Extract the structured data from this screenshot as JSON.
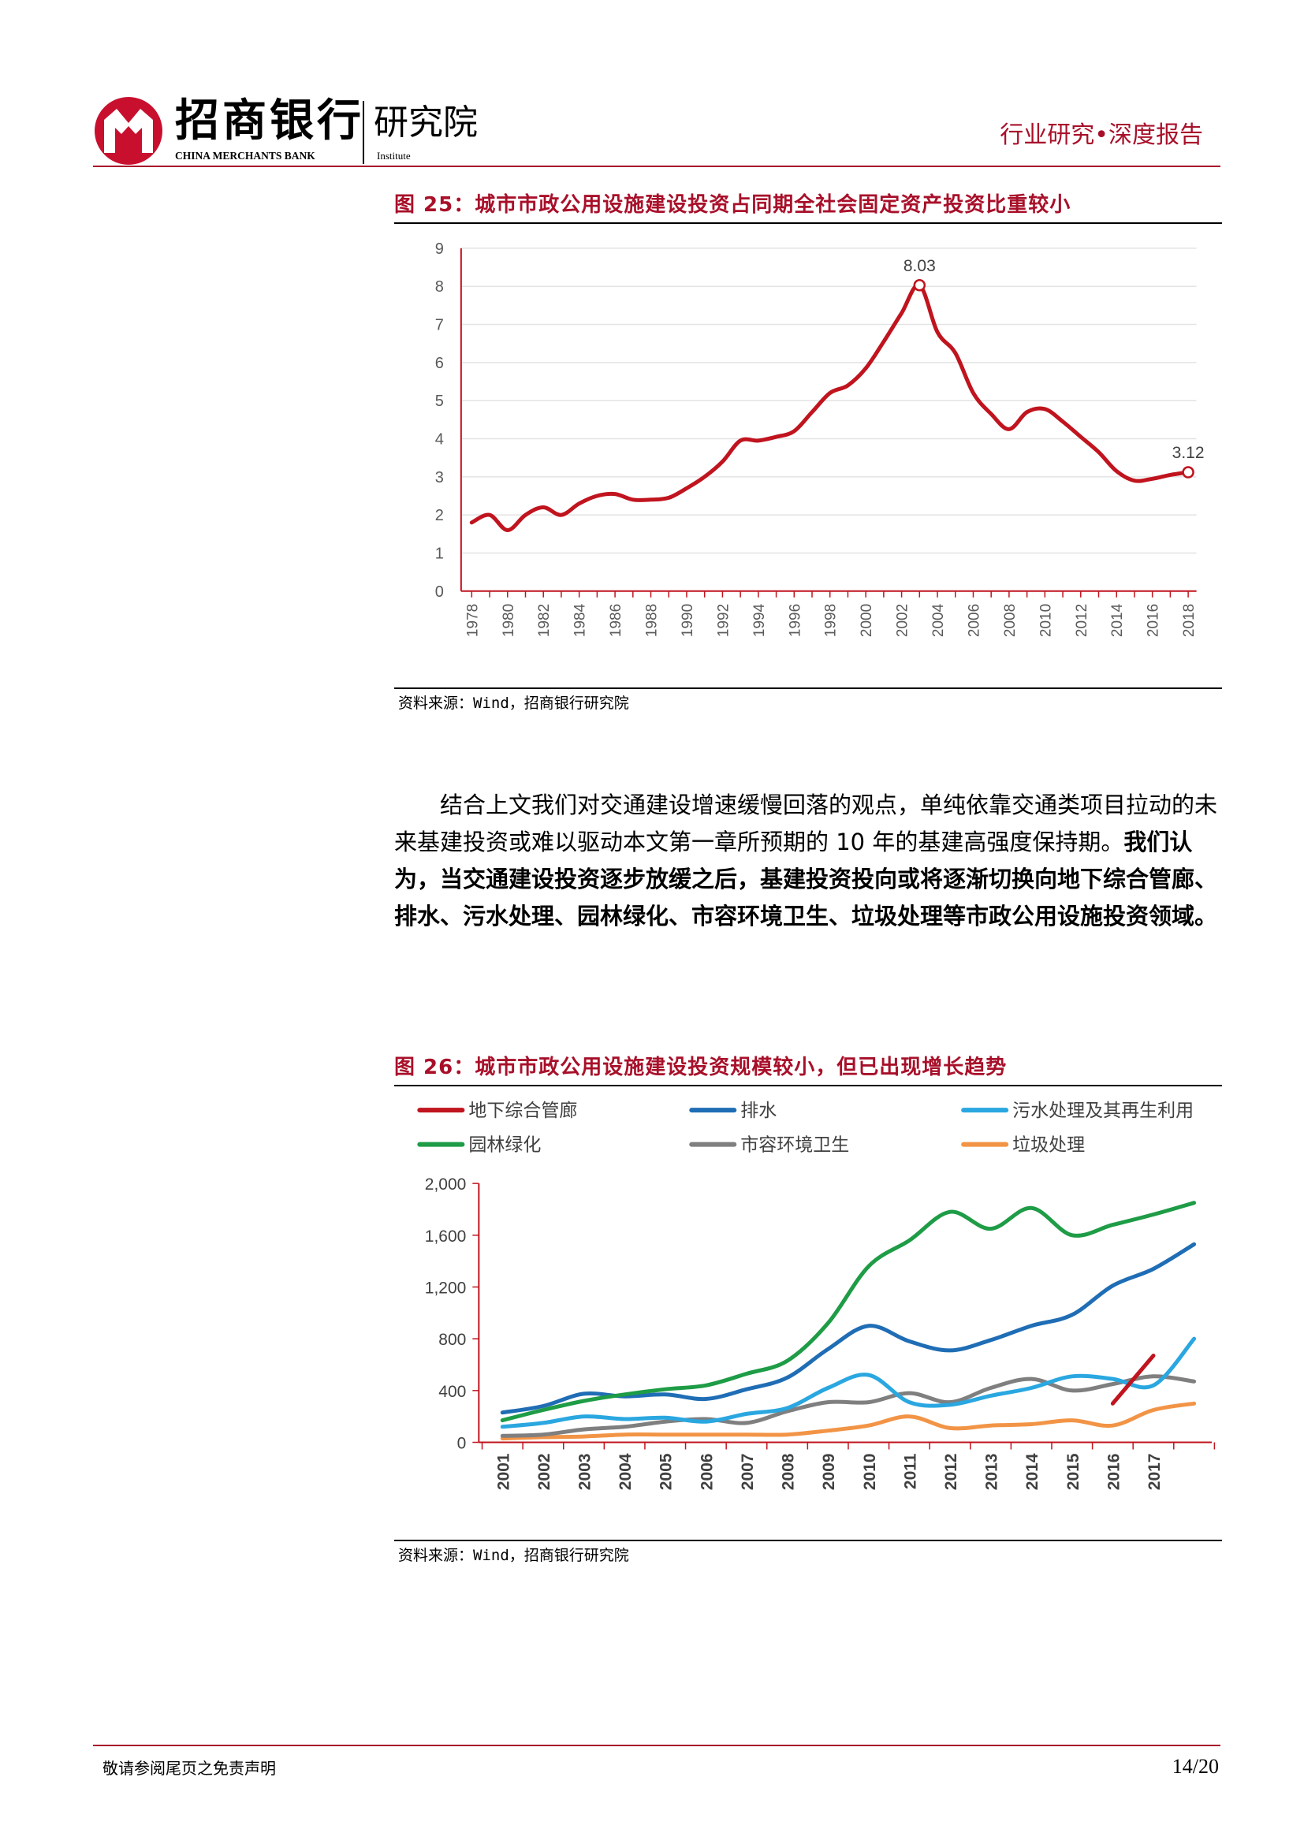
{
  "header": {
    "brand_cn": "招商银行",
    "brand_en": "CHINA MERCHANTS BANK",
    "institute_cn": "研究院",
    "institute_en": "Institute",
    "report_type": "行业研究•深度报告",
    "brand_color": "#a8102a"
  },
  "figure25": {
    "title": "图 25：城市市政公用设施建设投资占同期全社会固定资产投资比重较小",
    "source": "资料来源：Wind，招商银行研究院"
  },
  "paragraph": {
    "normal": "结合上文我们对交通建设增速缓慢回落的观点，单纯依靠交通类项目拉动的未来基建投资或难以驱动本文第一章所预期的 10 年的基建高强度保持期。",
    "bold": "我们认为，当交通建设投资逐步放缓之后，基建投资投向或将逐渐切换向地下综合管廊、排水、污水处理、园林绿化、市容环境卫生、垃圾处理等市政公用设施投资领域。"
  },
  "figure26": {
    "title": "图 26：城市市政公用设施建设投资规模较小，但已出现增长趋势",
    "source": "资料来源：Wind，招商银行研究院"
  },
  "footer": {
    "disclaimer": "敬请参阅尾页之免责声明",
    "page_number": "14/20"
  },
  "chart_data": [
    {
      "type": "line",
      "title": "",
      "xlabel": "",
      "ylabel": "",
      "x": [
        1978,
        1979,
        1980,
        1981,
        1982,
        1983,
        1984,
        1985,
        1986,
        1987,
        1988,
        1989,
        1990,
        1991,
        1992,
        1993,
        1994,
        1995,
        1996,
        1997,
        1998,
        1999,
        2000,
        2001,
        2002,
        2003,
        2004,
        2005,
        2006,
        2007,
        2008,
        2009,
        2010,
        2011,
        2012,
        2013,
        2014,
        2015,
        2016,
        2017,
        2018
      ],
      "x_ticks": [
        "1978",
        "1980",
        "1982",
        "1984",
        "1986",
        "1988",
        "1990",
        "1992",
        "1994",
        "1996",
        "1998",
        "2000",
        "2002",
        "2004",
        "2006",
        "2008",
        "2010",
        "2012",
        "2014",
        "2016",
        "2018"
      ],
      "series": [
        {
          "name": "",
          "color": "#c0141e",
          "values": [
            1.8,
            2.0,
            1.6,
            2.0,
            2.2,
            2.0,
            2.3,
            2.5,
            2.55,
            2.4,
            2.4,
            2.45,
            2.7,
            3.0,
            3.4,
            3.95,
            3.95,
            4.05,
            4.2,
            4.7,
            5.2,
            5.4,
            5.85,
            6.55,
            7.3,
            8.03,
            6.8,
            6.25,
            5.2,
            4.65,
            4.25,
            4.7,
            4.78,
            4.45,
            4.05,
            3.65,
            3.15,
            2.9,
            2.95,
            3.05,
            3.12
          ]
        }
      ],
      "annotations": [
        {
          "x": 2003,
          "value": 8.03,
          "label": "8.03"
        },
        {
          "x": 2018,
          "value": 3.12,
          "label": "3.12"
        }
      ],
      "ylim": [
        0,
        9
      ],
      "y_ticks": [
        "0",
        "1",
        "2",
        "3",
        "4",
        "5",
        "6",
        "7",
        "8",
        "9"
      ],
      "grid": true
    },
    {
      "type": "line",
      "title": "",
      "xlabel": "",
      "ylabel": "",
      "categories": [
        "2001",
        "2002",
        "2003",
        "2004",
        "2005",
        "2006",
        "2007",
        "2008",
        "2009",
        "2010",
        "2011",
        "2012",
        "2013",
        "2014",
        "2015",
        "2016",
        "2017",
        "2018"
      ],
      "x_tick_labels": [
        "2001",
        "2002",
        "2003",
        "2004",
        "2005",
        "2006",
        "2007",
        "2008",
        "2009",
        "2010",
        "2011",
        "2012",
        "2013",
        "2014",
        "2015",
        "2016",
        "2017"
      ],
      "ylim": [
        0,
        2000
      ],
      "y_ticks": [
        "0",
        "400",
        "800",
        "1,200",
        "1,600",
        "2,000"
      ],
      "grid": false,
      "legend_position": "top",
      "series": [
        {
          "name": "地下综合管廊",
          "color": "#c0141e",
          "values": [
            null,
            null,
            null,
            null,
            null,
            null,
            null,
            null,
            null,
            null,
            null,
            null,
            null,
            null,
            null,
            300,
            670,
            null
          ]
        },
        {
          "name": "排水",
          "color": "#1f6db5",
          "values": [
            230,
            280,
            375,
            355,
            370,
            335,
            410,
            500,
            720,
            900,
            780,
            710,
            790,
            900,
            985,
            1210,
            1340,
            1530
          ]
        },
        {
          "name": "污水处理及其再生利用",
          "color": "#2aa7e0",
          "values": [
            120,
            150,
            200,
            180,
            190,
            160,
            220,
            265,
            420,
            520,
            310,
            290,
            360,
            420,
            510,
            490,
            440,
            800
          ]
        },
        {
          "name": "园林绿化",
          "color": "#1e9c46",
          "values": [
            170,
            250,
            320,
            370,
            410,
            440,
            530,
            630,
            920,
            1360,
            1560,
            1780,
            1650,
            1810,
            1600,
            1680,
            1760,
            1850
          ]
        },
        {
          "name": "市容环境卫生",
          "color": "#7f7f7f",
          "values": [
            50,
            60,
            100,
            120,
            160,
            180,
            150,
            240,
            310,
            310,
            380,
            310,
            420,
            490,
            400,
            450,
            510,
            470
          ]
        },
        {
          "name": "垃圾处理",
          "color": "#f29446",
          "values": [
            30,
            40,
            45,
            60,
            60,
            60,
            60,
            60,
            90,
            130,
            200,
            110,
            130,
            140,
            170,
            130,
            250,
            300
          ]
        }
      ]
    }
  ]
}
